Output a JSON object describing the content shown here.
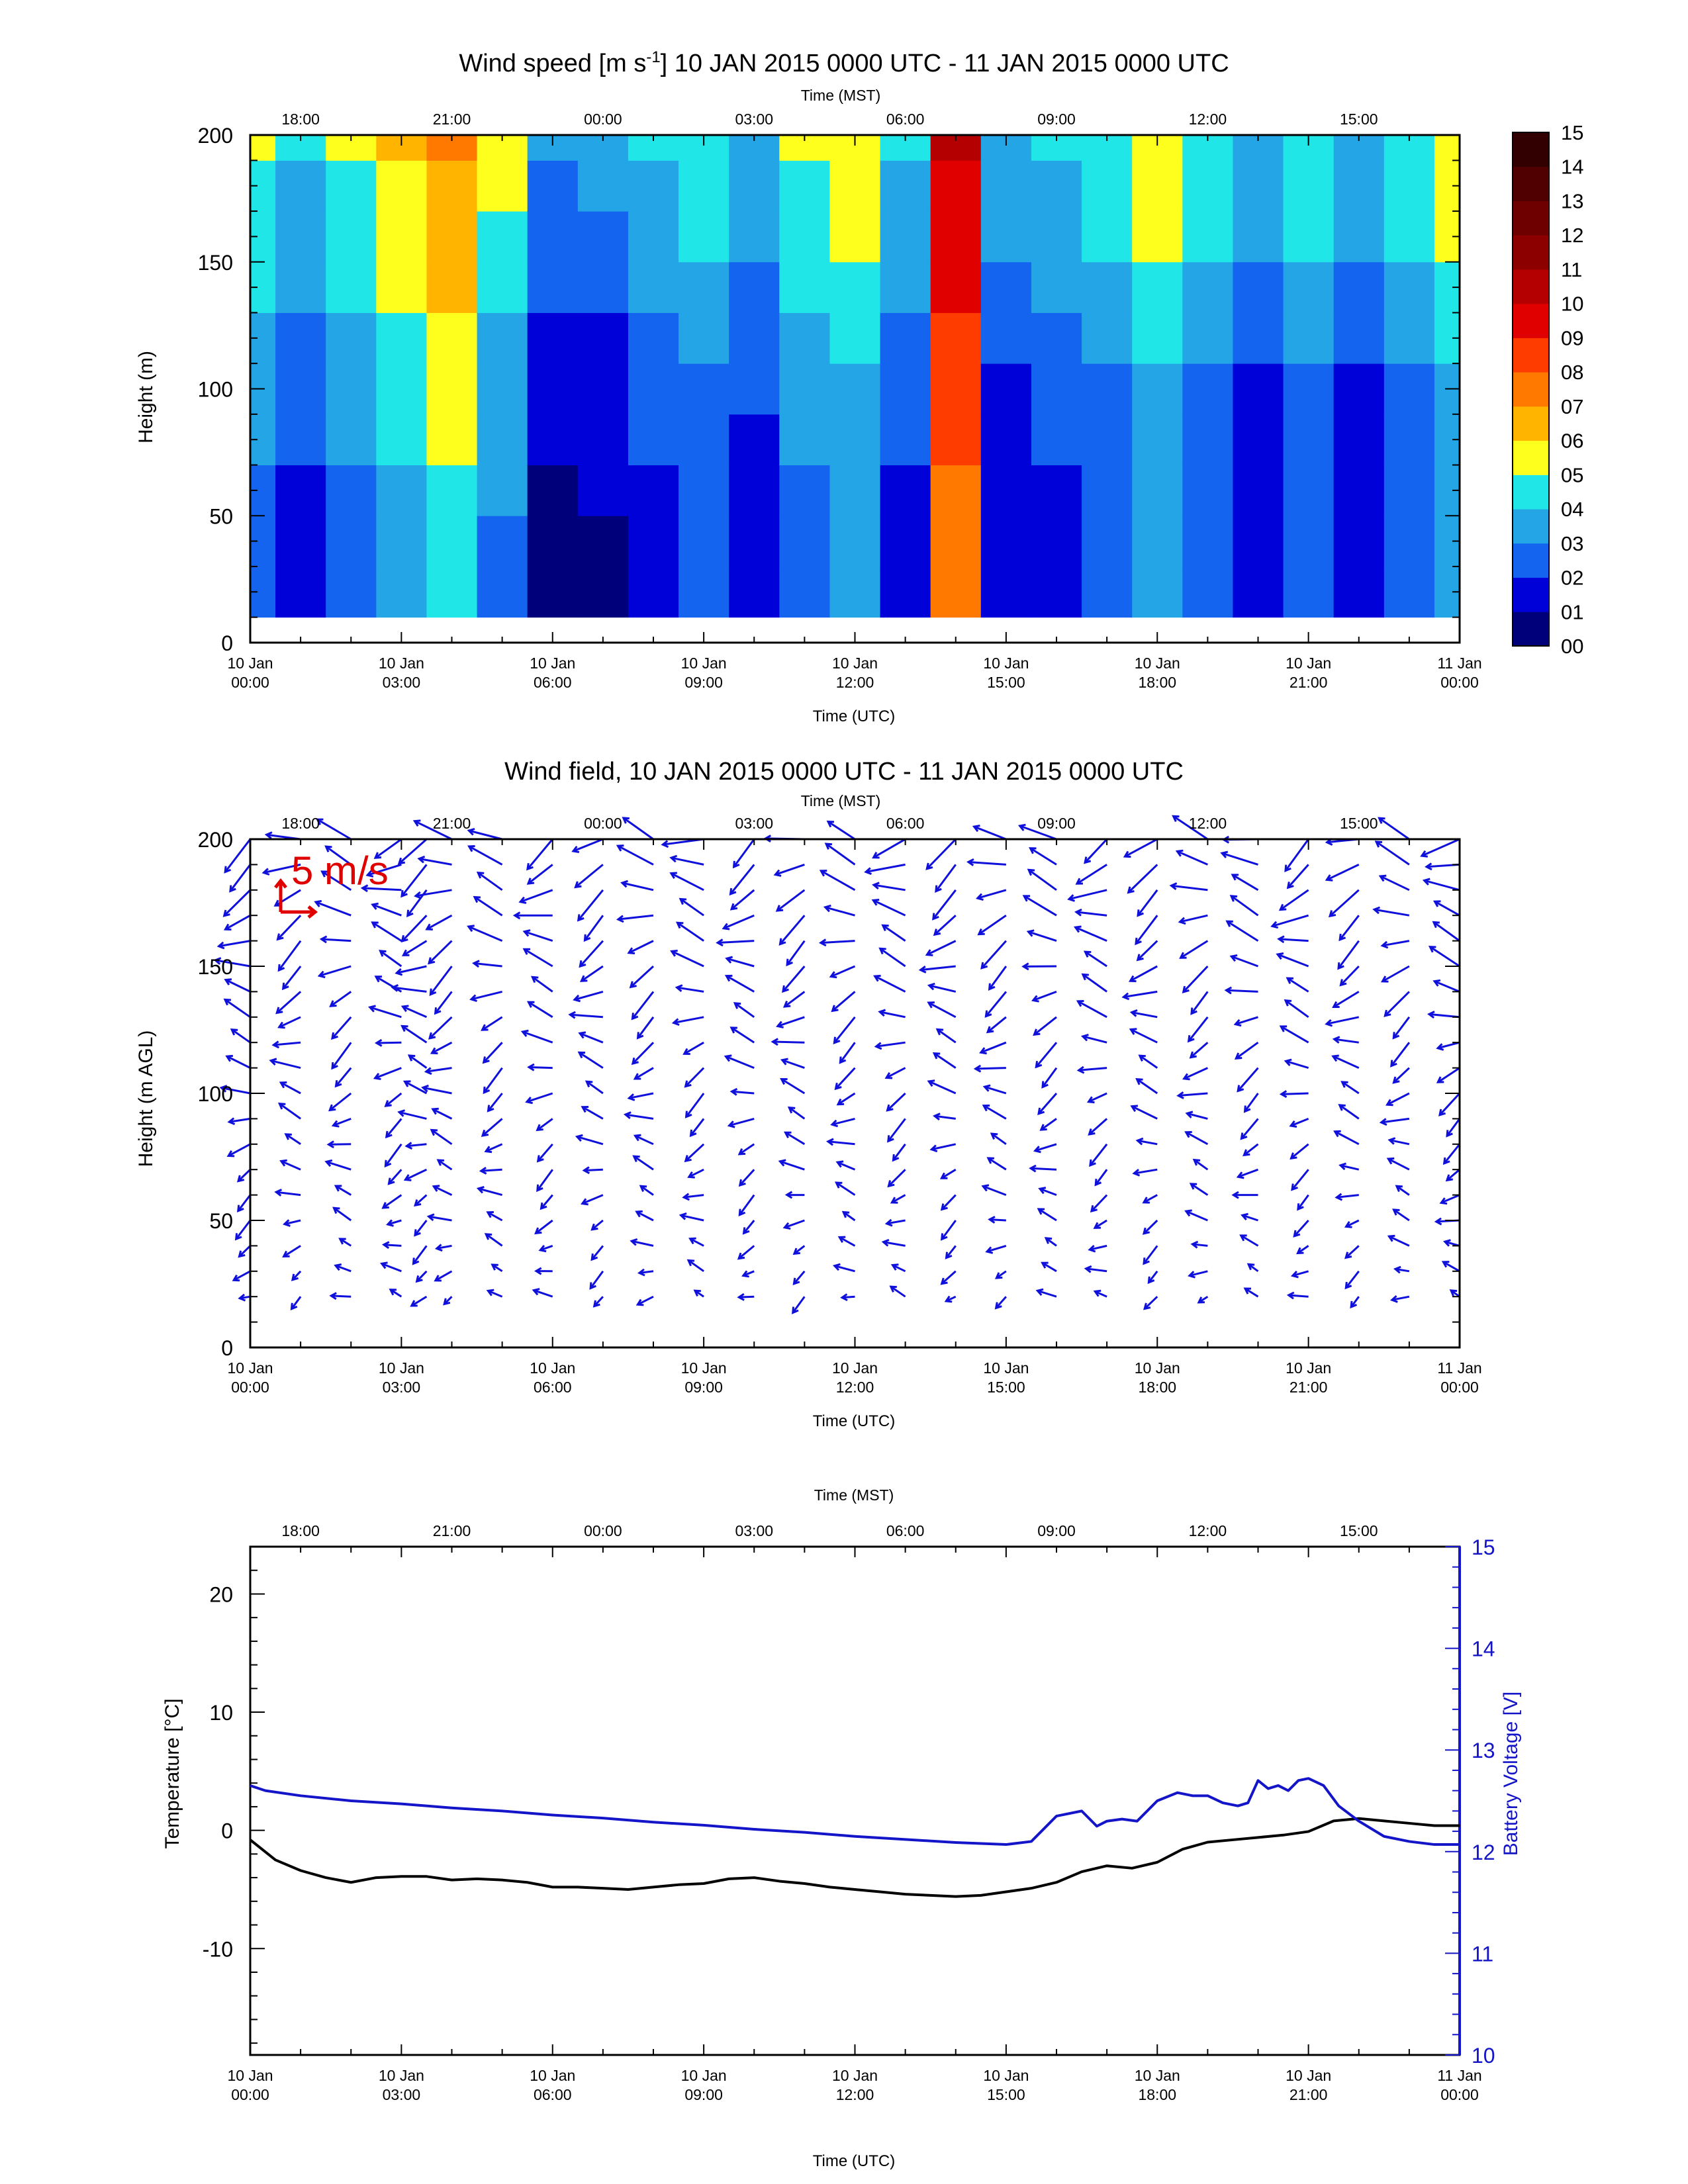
{
  "chart_data": [
    {
      "type": "heatmap",
      "title_main": "Wind speed [m s",
      "title_sup": "-1",
      "title_rest": "] 10 JAN 2015 0000 UTC - 11 JAN 2015 0000 UTC",
      "xlabel": "Time (UTC)",
      "x2label": "Time (MST)",
      "ylabel": "Height (m)",
      "xlim_hours": [
        0,
        24
      ],
      "ylim": [
        0,
        200
      ],
      "yticks": [
        "0",
        "50",
        "100",
        "150",
        "200"
      ],
      "xticks_utc": [
        {
          "line1": "10 Jan",
          "line2": "00:00"
        },
        {
          "line1": "10 Jan",
          "line2": "03:00"
        },
        {
          "line1": "10 Jan",
          "line2": "06:00"
        },
        {
          "line1": "10 Jan",
          "line2": "09:00"
        },
        {
          "line1": "10 Jan",
          "line2": "12:00"
        },
        {
          "line1": "10 Jan",
          "line2": "15:00"
        },
        {
          "line1": "10 Jan",
          "line2": "18:00"
        },
        {
          "line1": "10 Jan",
          "line2": "21:00"
        },
        {
          "line1": "11 Jan",
          "line2": "00:00"
        }
      ],
      "xticks_mst": [
        "18:00",
        "21:00",
        "00:00",
        "03:00",
        "06:00",
        "09:00",
        "12:00",
        "15:00"
      ],
      "colorbar_labels": [
        "00",
        "01",
        "02",
        "03",
        "04",
        "05",
        "06",
        "07",
        "08",
        "09",
        "10",
        "11",
        "12",
        "13",
        "14",
        "15"
      ],
      "colorbar_colors": [
        "#00007a",
        "#0000d8",
        "#1464f0",
        "#23a5e6",
        "#21e6e8",
        "#ffff1e",
        "#ffb400",
        "#ff7800",
        "#ff3c00",
        "#e00000",
        "#b40000",
        "#8c0000",
        "#6e0000",
        "#500000",
        "#320000"
      ],
      "profile_heights_m": [
        20,
        40,
        60,
        80,
        100,
        120,
        140,
        160,
        180,
        200
      ],
      "profile_hours_utc": [
        0,
        1,
        2,
        3,
        4,
        5,
        6,
        7,
        8,
        9,
        10,
        11,
        12,
        13,
        14,
        15,
        16,
        17,
        18,
        19,
        20,
        21,
        22,
        23,
        24
      ],
      "speed_ms": [
        [
          2.5,
          2.5,
          2.7,
          3.0,
          3.3,
          3.6,
          4.0,
          4.4,
          4.7,
          5.0
        ],
        [
          1.5,
          1.5,
          1.7,
          2.0,
          2.3,
          2.6,
          3.0,
          3.4,
          3.7,
          4.0
        ],
        [
          2.5,
          2.5,
          2.7,
          3.0,
          3.3,
          3.6,
          4.0,
          4.4,
          4.7,
          5.0
        ],
        [
          3.5,
          3.5,
          3.7,
          4.0,
          4.3,
          4.6,
          5.0,
          5.4,
          5.7,
          6.0
        ],
        [
          4.5,
          4.5,
          4.7,
          5.0,
          5.3,
          5.6,
          6.0,
          6.4,
          6.7,
          7.0
        ],
        [
          2.8,
          2.8,
          3.0,
          3.3,
          3.6,
          3.9,
          4.3,
          4.7,
          5.0,
          5.3
        ],
        [
          0.6,
          0.6,
          0.8,
          1.1,
          1.4,
          1.7,
          2.1,
          2.5,
          2.8,
          3.1
        ],
        [
          0.8,
          0.8,
          1.0,
          1.3,
          1.6,
          1.9,
          2.3,
          2.7,
          3.0,
          3.3
        ],
        [
          1.6,
          1.6,
          1.8,
          2.1,
          2.4,
          2.7,
          3.1,
          3.5,
          3.8,
          4.1
        ],
        [
          2.1,
          2.1,
          2.3,
          2.6,
          2.9,
          3.2,
          3.6,
          4.0,
          4.3,
          4.6
        ],
        [
          1.2,
          1.2,
          1.4,
          1.7,
          2.0,
          2.3,
          2.7,
          3.1,
          3.4,
          3.7
        ],
        [
          2.6,
          2.6,
          2.8,
          3.1,
          3.4,
          3.7,
          4.1,
          4.5,
          4.8,
          5.1
        ],
        [
          3.1,
          3.1,
          3.3,
          3.6,
          3.9,
          4.2,
          4.6,
          5.0,
          5.3,
          5.6
        ],
        [
          1.6,
          1.6,
          1.8,
          2.1,
          2.4,
          2.7,
          3.1,
          3.5,
          3.8,
          4.1
        ],
        [
          7.5,
          7.5,
          7.7,
          8.0,
          8.3,
          8.6,
          9.0,
          9.4,
          9.7,
          10.0
        ],
        [
          1.1,
          1.1,
          1.3,
          1.6,
          1.9,
          2.2,
          2.6,
          3.0,
          3.3,
          3.6
        ],
        [
          1.6,
          1.6,
          1.8,
          2.1,
          2.4,
          2.7,
          3.1,
          3.5,
          3.8,
          4.1
        ],
        [
          2.1,
          2.1,
          2.3,
          2.6,
          2.9,
          3.2,
          3.6,
          4.0,
          4.3,
          4.6
        ],
        [
          3.1,
          3.1,
          3.3,
          3.6,
          3.9,
          4.2,
          4.6,
          5.0,
          5.3,
          5.6
        ],
        [
          2.1,
          2.1,
          2.3,
          2.6,
          2.9,
          3.2,
          3.6,
          4.0,
          4.3,
          4.6
        ],
        [
          1.1,
          1.1,
          1.3,
          1.6,
          1.9,
          2.2,
          2.6,
          3.0,
          3.3,
          3.6
        ],
        [
          2.1,
          2.1,
          2.3,
          2.6,
          2.9,
          3.2,
          3.6,
          4.0,
          4.3,
          4.6
        ],
        [
          1.1,
          1.1,
          1.3,
          1.6,
          1.9,
          2.2,
          2.6,
          3.0,
          3.3,
          3.6
        ],
        [
          2.1,
          2.1,
          2.3,
          2.6,
          2.9,
          3.2,
          3.6,
          4.0,
          4.3,
          4.6
        ],
        [
          3.1,
          3.1,
          3.3,
          3.6,
          3.9,
          4.2,
          4.6,
          5.0,
          5.3,
          5.6
        ]
      ]
    },
    {
      "type": "scatter",
      "title": "Wind field, 10 JAN 2015 0000 UTC - 11 JAN 2015 0000 UTC",
      "xlabel": "Time (UTC)",
      "x2label": "Time (MST)",
      "ylabel": "Height (m AGL)",
      "scale_label": "5 m/s",
      "scale_color": "#e00000",
      "vector_color": "#1010dc",
      "xlim_hours": [
        0,
        24
      ],
      "ylim": [
        0,
        200
      ],
      "yticks": [
        "0",
        "50",
        "100",
        "150",
        "200"
      ],
      "xticks_utc": [
        {
          "line1": "10 Jan",
          "line2": "00:00"
        },
        {
          "line1": "10 Jan",
          "line2": "03:00"
        },
        {
          "line1": "10 Jan",
          "line2": "06:00"
        },
        {
          "line1": "10 Jan",
          "line2": "09:00"
        },
        {
          "line1": "10 Jan",
          "line2": "12:00"
        },
        {
          "line1": "10 Jan",
          "line2": "15:00"
        },
        {
          "line1": "10 Jan",
          "line2": "18:00"
        },
        {
          "line1": "10 Jan",
          "line2": "21:00"
        },
        {
          "line1": "11 Jan",
          "line2": "00:00"
        }
      ],
      "xticks_mst": [
        "18:00",
        "21:00",
        "00:00",
        "03:00",
        "06:00",
        "09:00",
        "12:00",
        "15:00"
      ],
      "vector_heights_m": [
        20,
        30,
        40,
        50,
        60,
        70,
        80,
        90,
        100,
        110,
        120,
        130,
        140,
        150,
        160,
        170,
        180,
        190,
        200
      ],
      "vector_hours_utc": [
        0,
        1,
        2,
        3,
        3.5,
        4,
        5,
        6,
        7,
        8,
        9,
        10,
        11,
        12,
        13,
        14,
        15,
        16,
        17,
        18,
        19,
        20,
        21,
        22,
        23,
        24
      ]
    },
    {
      "type": "line",
      "xlabel": "Time (UTC)",
      "x2label": "Time (MST)",
      "ylabel": "Temperature [°C]",
      "y2label": "Battery Voltage [V]",
      "ylim": [
        -19,
        24
      ],
      "y2lim": [
        10,
        15
      ],
      "yticks": [
        "-10",
        "0",
        "10",
        "20"
      ],
      "y2ticks": [
        "10",
        "11",
        "12",
        "13",
        "14",
        "15"
      ],
      "xticks_utc": [
        {
          "line1": "10 Jan",
          "line2": "00:00"
        },
        {
          "line1": "10 Jan",
          "line2": "03:00"
        },
        {
          "line1": "10 Jan",
          "line2": "06:00"
        },
        {
          "line1": "10 Jan",
          "line2": "09:00"
        },
        {
          "line1": "10 Jan",
          "line2": "12:00"
        },
        {
          "line1": "10 Jan",
          "line2": "15:00"
        },
        {
          "line1": "10 Jan",
          "line2": "18:00"
        },
        {
          "line1": "10 Jan",
          "line2": "21:00"
        },
        {
          "line1": "11 Jan",
          "line2": "00:00"
        }
      ],
      "xticks_mst": [
        "18:00",
        "21:00",
        "00:00",
        "03:00",
        "06:00",
        "09:00",
        "12:00",
        "15:00"
      ],
      "series": [
        {
          "name": "Temperature [°C]",
          "color": "#000000",
          "x_hours_utc": [
            0,
            0.5,
            1,
            1.5,
            2,
            2.5,
            3,
            3.5,
            4,
            4.5,
            5,
            5.5,
            6,
            6.5,
            7,
            7.5,
            8,
            8.5,
            9,
            9.5,
            10,
            10.5,
            11,
            11.5,
            12,
            12.5,
            13,
            13.5,
            14,
            14.5,
            15,
            15.5,
            16,
            16.5,
            17,
            17.5,
            18,
            18.5,
            19,
            19.5,
            20,
            20.5,
            21,
            21.5,
            22,
            22.5,
            23,
            23.5,
            24
          ],
          "y": [
            -0.8,
            -2.5,
            -3.4,
            -4.0,
            -4.4,
            -4.0,
            -3.9,
            -3.9,
            -4.2,
            -4.1,
            -4.2,
            -4.4,
            -4.8,
            -4.8,
            -4.9,
            -5.0,
            -4.8,
            -4.6,
            -4.5,
            -4.1,
            -4.0,
            -4.3,
            -4.5,
            -4.8,
            -5.0,
            -5.2,
            -5.4,
            -5.5,
            -5.6,
            -5.5,
            -5.2,
            -4.9,
            -4.4,
            -3.5,
            -3.0,
            -3.2,
            -2.7,
            -1.6,
            -1.0,
            -0.8,
            -0.6,
            -0.4,
            -0.1,
            0.8,
            1.0,
            0.8,
            0.6,
            0.4,
            0.4
          ]
        },
        {
          "name": "Battery Voltage [V]",
          "color": "#1414c8",
          "x_hours_utc": [
            0,
            0.3,
            1,
            2,
            3,
            4,
            5,
            6,
            7,
            8,
            9,
            10,
            11,
            12,
            13,
            14,
            15,
            15.5,
            16,
            16.5,
            16.8,
            17,
            17.3,
            17.6,
            18,
            18.4,
            18.7,
            19,
            19.3,
            19.6,
            19.8,
            20,
            20.2,
            20.4,
            20.6,
            20.8,
            21,
            21.3,
            21.6,
            22,
            22.5,
            23,
            23.5,
            24
          ],
          "y": [
            12.65,
            12.6,
            12.55,
            12.5,
            12.47,
            12.43,
            12.4,
            12.36,
            12.33,
            12.29,
            12.26,
            12.22,
            12.19,
            12.15,
            12.12,
            12.09,
            12.07,
            12.1,
            12.35,
            12.4,
            12.25,
            12.3,
            12.32,
            12.3,
            12.5,
            12.58,
            12.55,
            12.55,
            12.48,
            12.45,
            12.48,
            12.7,
            12.62,
            12.65,
            12.6,
            12.7,
            12.72,
            12.65,
            12.45,
            12.3,
            12.15,
            12.1,
            12.07,
            12.07
          ]
        }
      ]
    }
  ]
}
